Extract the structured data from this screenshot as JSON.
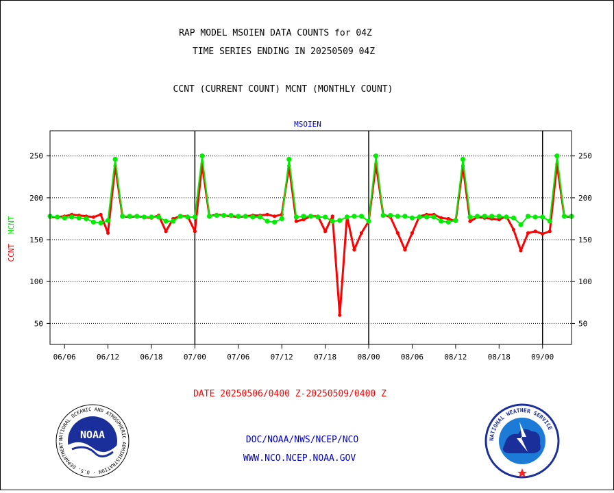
{
  "header": {
    "title_line1": "RAP MODEL MSOIEN DATA COUNTS for 04Z",
    "title_line2": "TIME SERIES ENDING IN 20250509 04Z",
    "subtitle": "CCNT (CURRENT COUNT) MCNT (MONTHLY COUNT)"
  },
  "chart_data": {
    "type": "line",
    "title": "MSOIEN",
    "ylabel_primary": "CCNT",
    "ylabel_secondary": "MCNT",
    "ylim": [
      25,
      280
    ],
    "yticks": [
      50,
      100,
      150,
      200,
      250
    ],
    "grid": true,
    "x_tick_labels": [
      "06/06",
      "06/12",
      "06/18",
      "07/00",
      "07/06",
      "07/12",
      "07/18",
      "08/00",
      "08/06",
      "08/12",
      "08/18",
      "09/00"
    ],
    "x_ticks": [
      0.5,
      2,
      3.5,
      5,
      6.5,
      8,
      9.5,
      11,
      12.5,
      14,
      15.5,
      17
    ],
    "xlim": [
      0,
      18
    ],
    "day_separators": [
      5,
      11,
      17
    ],
    "series": [
      {
        "name": "CCNT",
        "color": "#ff0000",
        "x": [
          0,
          0.25,
          0.5,
          0.75,
          1,
          1.25,
          1.5,
          1.75,
          2,
          2.25,
          2.5,
          2.75,
          3,
          3.25,
          3.5,
          3.75,
          4,
          4.25,
          4.5,
          4.75,
          5,
          5.25,
          5.5,
          5.75,
          6,
          6.25,
          6.5,
          6.75,
          7,
          7.25,
          7.5,
          7.75,
          8,
          8.25,
          8.5,
          8.75,
          9,
          9.25,
          9.5,
          9.75,
          10,
          10.25,
          10.5,
          10.75,
          11,
          11.25,
          11.5,
          11.75,
          12,
          12.25,
          12.5,
          12.75,
          13,
          13.25,
          13.5,
          13.75,
          14,
          14.25,
          14.5,
          14.75,
          15,
          15.25,
          15.5,
          15.75,
          16,
          16.25,
          16.5,
          16.75,
          17,
          17.25,
          17.5,
          17.75,
          18
        ],
        "values": [
          177,
          177,
          178,
          180,
          179,
          178,
          177,
          180,
          158,
          238,
          178,
          177,
          178,
          177,
          176,
          179,
          160,
          175,
          178,
          178,
          160,
          240,
          178,
          180,
          179,
          178,
          177,
          178,
          179,
          179,
          180,
          178,
          180,
          238,
          172,
          174,
          178,
          178,
          160,
          178,
          60,
          178,
          138,
          158,
          172,
          240,
          180,
          177,
          158,
          138,
          158,
          178,
          180,
          180,
          176,
          175,
          172,
          238,
          172,
          177,
          176,
          175,
          174,
          178,
          162,
          137,
          158,
          160,
          157,
          160,
          240,
          178,
          177
        ]
      },
      {
        "name": "MCNT",
        "color": "#00ee00",
        "x": [
          0,
          0.25,
          0.5,
          0.75,
          1,
          1.25,
          1.5,
          1.75,
          2,
          2.25,
          2.5,
          2.75,
          3,
          3.25,
          3.5,
          3.75,
          4,
          4.25,
          4.5,
          4.75,
          5,
          5.25,
          5.5,
          5.75,
          6,
          6.25,
          6.5,
          6.75,
          7,
          7.25,
          7.5,
          7.75,
          8,
          8.25,
          8.5,
          8.75,
          9,
          9.25,
          9.5,
          9.75,
          10,
          10.25,
          10.5,
          10.75,
          11,
          11.25,
          11.5,
          11.75,
          12,
          12.25,
          12.5,
          12.75,
          13,
          13.25,
          13.5,
          13.75,
          14,
          14.25,
          14.5,
          14.75,
          15,
          15.25,
          15.5,
          15.75,
          16,
          16.25,
          16.5,
          16.75,
          17,
          17.25,
          17.5,
          17.75,
          18
        ],
        "values": [
          178,
          177,
          176,
          177,
          176,
          175,
          171,
          170,
          173,
          246,
          178,
          178,
          178,
          177,
          177,
          177,
          172,
          172,
          178,
          177,
          177,
          250,
          178,
          179,
          179,
          179,
          178,
          178,
          177,
          177,
          172,
          171,
          175,
          246,
          177,
          178,
          178,
          177,
          177,
          172,
          173,
          177,
          178,
          178,
          172,
          250,
          179,
          179,
          178,
          178,
          176,
          177,
          177,
          177,
          172,
          171,
          173,
          246,
          177,
          178,
          178,
          178,
          178,
          177,
          176,
          168,
          178,
          177,
          177,
          172,
          250,
          178,
          178
        ]
      }
    ]
  },
  "footer": {
    "date_range": "DATE 20250506/0400 Z-20250509/0400 Z",
    "org_path": "DOC/NOAA/NWS/NCEP/NCO",
    "website": "WWW.NCO.NCEP.NOAA.GOV",
    "noaa_logo_text": "NOAA",
    "noaa_ring_text": "NATIONAL OCEANIC AND ATMOSPHERIC ADMINISTRATION · U.S. DEPARTMENT OF COMMERCE",
    "nws_ring_text": "NATIONAL WEATHER SERVICE"
  },
  "colors": {
    "title": "#000000",
    "chart_title": "#0000cc",
    "date_range": "#ff0000",
    "footer_text": "#0000cc",
    "ccnt": "#ff0000",
    "mcnt": "#00ee00"
  }
}
